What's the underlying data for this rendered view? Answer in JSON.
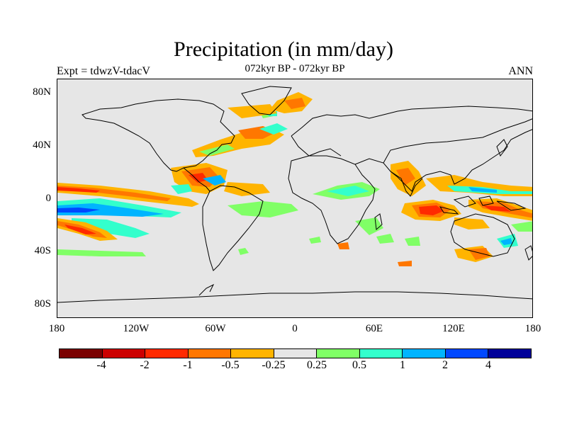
{
  "title": "Precipitation (in mm/day)",
  "left_label": "Expt = tdwzV-tdacV",
  "center_label": "072kyr BP - 072kyr BP",
  "right_label": "ANN",
  "y_ticks": [
    "80N",
    "40N",
    "0",
    "40S",
    "80S"
  ],
  "x_ticks": [
    "180",
    "120W",
    "60W",
    "0",
    "60E",
    "120E",
    "180"
  ],
  "colorbar": {
    "colors": [
      "#7a0000",
      "#cc0000",
      "#ff2a00",
      "#ff7700",
      "#ffb400",
      "#e6e6e6",
      "#80ff66",
      "#33ffcc",
      "#00b4ff",
      "#0048ff",
      "#000099"
    ],
    "labels": [
      "-4",
      "-2",
      "-1",
      "-0.5",
      "-0.25",
      "0.25",
      "0.5",
      "1",
      "2",
      "4"
    ]
  }
}
